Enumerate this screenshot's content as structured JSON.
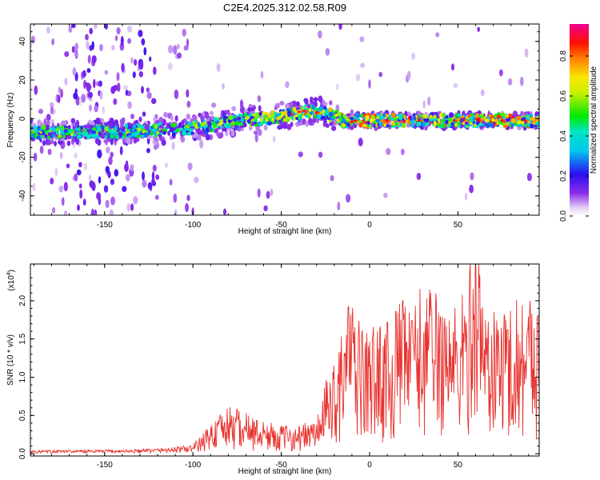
{
  "figure_title": "C2E4.2025.312.02.58.R09",
  "chart_data": [
    {
      "type": "heatmap",
      "title": "C2E4.2025.312.02.58.R09",
      "xlabel": "Height of straight line (km)",
      "ylabel": "Frequency (Hz)",
      "xlim": [
        -192,
        96
      ],
      "ylim": [
        -50,
        49
      ],
      "xticks": [
        -150,
        -100,
        -50,
        0,
        50
      ],
      "xtick_labels": [
        "-150",
        "-100",
        "-50",
        "0",
        "50"
      ],
      "yticks": [
        -40,
        -20,
        0,
        20,
        40
      ],
      "ytick_labels": [
        "-40",
        "-20",
        "0",
        "20",
        "40"
      ],
      "colorbar": {
        "label": "Normalized spectral amplitude",
        "range": [
          0,
          0.96
        ],
        "ticks": [
          0.0,
          0.2,
          0.4,
          0.6,
          0.8
        ],
        "tick_labels": [
          "0.0",
          "0.2",
          "0.4",
          "0.6",
          "0.8"
        ]
      },
      "ridge": {
        "description_points_x": [
          -192,
          -160,
          -120,
          -100,
          -80,
          -60,
          -45,
          -35,
          -25,
          -15,
          0,
          20,
          50,
          96
        ],
        "description_points_freq": [
          -7,
          -7,
          -6,
          -5,
          -2,
          0,
          2,
          4,
          3,
          -1,
          -1,
          -1,
          -1,
          -1
        ],
        "peak_amplitude": 0.95
      }
    },
    {
      "type": "line",
      "xlabel": "Height of straight line (km)",
      "ylabel": "SNR (10 * v/v)",
      "scale_label": "(x10",
      "scale_exp": "4",
      "scale_close": ")",
      "xlim": [
        -192,
        96
      ],
      "ylim": [
        -0.03,
        2.48
      ],
      "xticks": [
        -150,
        -100,
        -50,
        0,
        50
      ],
      "xtick_labels": [
        "-150",
        "-100",
        "-50",
        "0",
        "50"
      ],
      "yticks": [
        0.0,
        0.5,
        1.0,
        1.5,
        2.0
      ],
      "ytick_labels": [
        "0.0",
        "0.5",
        "1.0",
        "1.5",
        "2.0"
      ],
      "series": [
        {
          "name": "SNR",
          "color": "#e8322e",
          "envelope_x": [
            -192,
            -130,
            -110,
            -100,
            -95,
            -90,
            -80,
            -70,
            -60,
            -50,
            -40,
            -30,
            -25,
            -20,
            -15,
            -12,
            -5,
            0,
            5,
            10,
            15,
            20,
            25,
            30,
            40,
            50,
            55,
            60,
            65,
            70,
            80,
            90,
            96
          ],
          "envelope_y": [
            0.03,
            0.04,
            0.06,
            0.08,
            0.14,
            0.24,
            0.36,
            0.32,
            0.25,
            0.22,
            0.22,
            0.27,
            0.55,
            0.75,
            0.95,
            1.2,
            1.0,
            0.95,
            1.05,
            0.9,
            1.15,
            1.2,
            1.25,
            1.3,
            1.3,
            1.15,
            1.35,
            1.75,
            1.25,
            1.1,
            1.2,
            1.3,
            1.2
          ],
          "peaks": [
            {
              "x": -75,
              "y": 0.58
            },
            {
              "x": -12,
              "y": 1.92
            },
            {
              "x": 10,
              "y": 1.72
            },
            {
              "x": 24,
              "y": 1.74
            },
            {
              "x": 35,
              "y": 1.88
            },
            {
              "x": 60,
              "y": 2.45
            },
            {
              "x": 78,
              "y": 1.62
            },
            {
              "x": 95,
              "y": 1.78
            }
          ]
        }
      ]
    }
  ],
  "colors": {
    "line": "#e8322e",
    "axis": "#000000",
    "background": "#ffffff"
  }
}
